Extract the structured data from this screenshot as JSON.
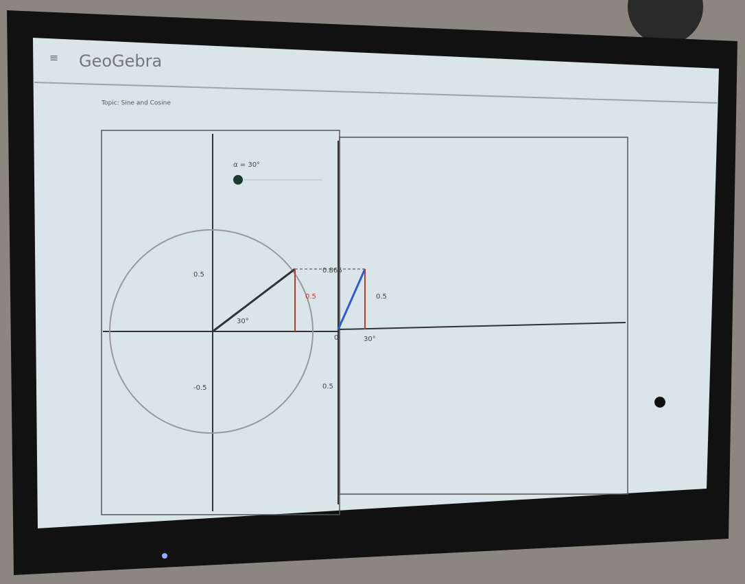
{
  "header": {
    "title": "GeoGebra",
    "topic": "Topic: Sine and Cosine"
  },
  "graphics": {
    "slider_label": "α = 30°",
    "labels": [
      "0.5",
      "0.866",
      "0.5",
      "0.5",
      "30°",
      "-0.5",
      "0.5",
      "0",
      "30°"
    ]
  }
}
